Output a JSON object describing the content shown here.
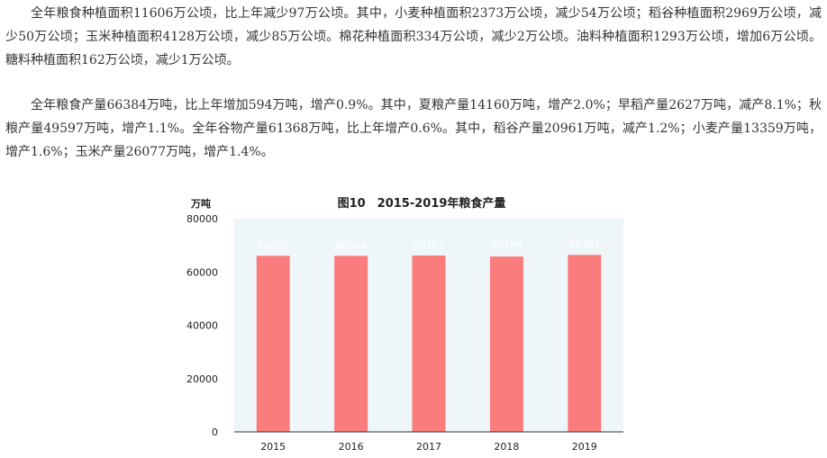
{
  "article": {
    "paragraph1": "全年粮食种植面积11606万公顷，比上年减少97万公顷。其中，小麦种植面积2373万公顷，减少54万公顷；稻谷种植面积2969万公顷，减少50万公顷；玉米种植面积4128万公顷，减少85万公顷。棉花种植面积334万公顷，减少2万公顷。油料种植面积1293万公顷，增加6万公顷。糖料种植面积162万公顷，减少1万公顷。",
    "paragraph2": "全年粮食产量66384万吨，比上年增加594万吨，增产0.9%。其中，夏粮产量14160万吨，增产2.0%；早稻产量2627万吨，减产8.1%；秋粮产量49597万吨，增产1.1%。全年谷物产量61368万吨，比上年增产0.6%。其中，稻谷产量20961万吨，减产1.2%；小麦产量13359万吨，增产1.6%；玉米产量26077万吨，增产1.4%。"
  },
  "chart_data": {
    "type": "bar",
    "title": "图10　2015-2019年粮食产量",
    "unit_label": "万吨",
    "categories": [
      "2015",
      "2016",
      "2017",
      "2018",
      "2019"
    ],
    "values": [
      66060,
      66044,
      66161,
      65789,
      66384
    ],
    "data_labels": [
      "66060",
      "66044",
      "66161",
      "65789",
      "66384"
    ],
    "yticks": [
      "0",
      "20000",
      "40000",
      "60000",
      "80000"
    ],
    "ylim": [
      0,
      80000
    ],
    "grid": false,
    "legend": "none",
    "colors": {
      "bar": "#fb7c7c",
      "plot_background": "#eef6f9",
      "axis": "#333333",
      "data_label": "#ffffff"
    }
  }
}
